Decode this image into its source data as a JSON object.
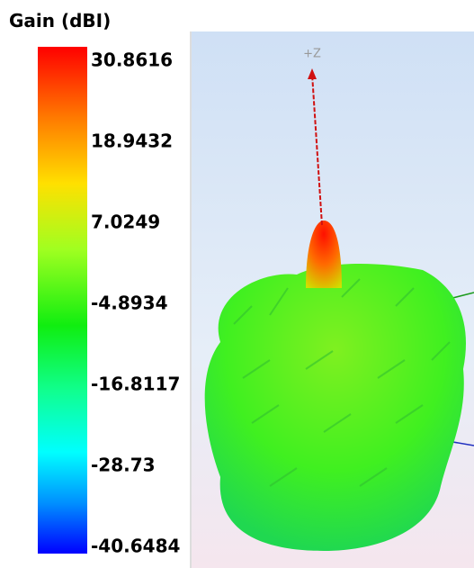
{
  "legend": {
    "title": "Gain (dBI)",
    "ticks": [
      30.8616,
      18.9432,
      7.0249,
      -4.8934,
      -16.8117,
      -28.73,
      -40.6484
    ]
  },
  "view": {
    "axis_label": "+Z"
  }
}
